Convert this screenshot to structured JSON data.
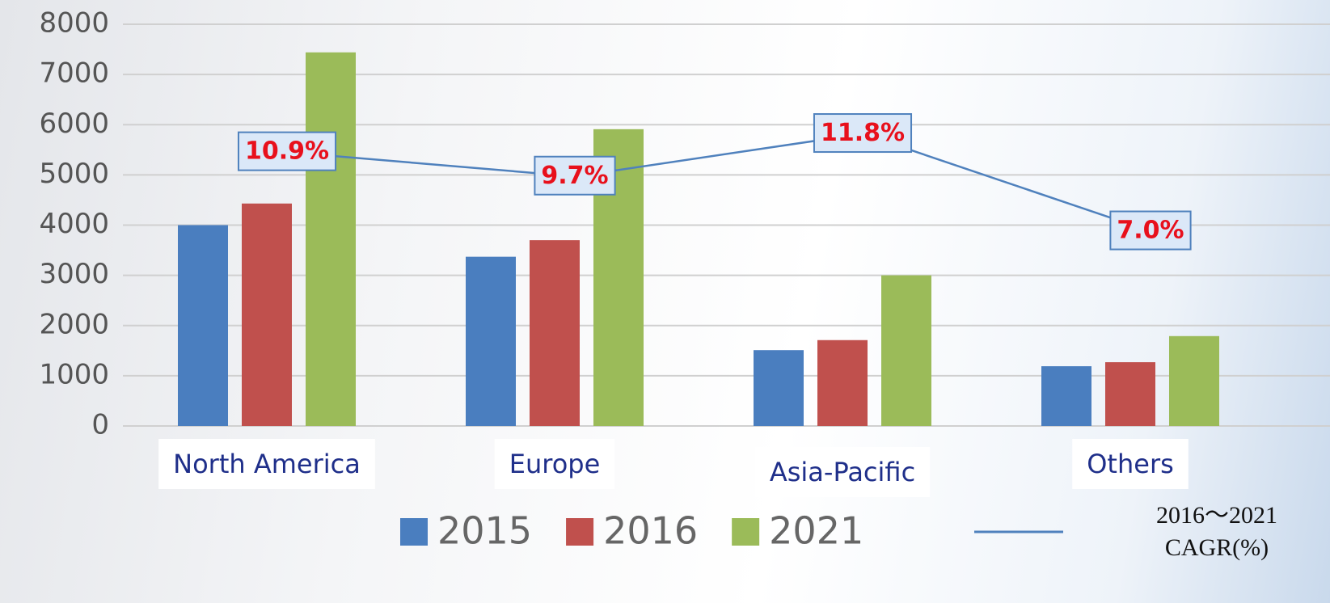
{
  "chart_data": {
    "type": "bar",
    "categories": [
      "North America",
      "Europe",
      "Asia-Pacific",
      "Others"
    ],
    "series": [
      {
        "name": "2015",
        "color": "#4a7ebf",
        "values": [
          4000,
          3370,
          1510,
          1190
        ]
      },
      {
        "name": "2016",
        "color": "#c0504d",
        "values": [
          4430,
          3700,
          1710,
          1270
        ]
      },
      {
        "name": "2021",
        "color": "#9bbb59",
        "values": [
          7440,
          5910,
          3000,
          1790
        ]
      },
      {
        "name": "2016～2021 CAGR(%)",
        "type": "line",
        "axis": "y2",
        "color": "#4f81bd",
        "values": [
          10.9,
          9.7,
          11.8,
          7.0
        ],
        "value_labels": [
          "10.9%",
          "9.7%",
          "11.8%",
          "7.0%"
        ]
      }
    ],
    "ylim": [
      0,
      8000
    ],
    "yticks": [
      0,
      1000,
      2000,
      3000,
      4000,
      5000,
      6000,
      7000,
      8000
    ],
    "y2lim": [
      -2.6,
      17.2
    ],
    "grid": true
  }
}
